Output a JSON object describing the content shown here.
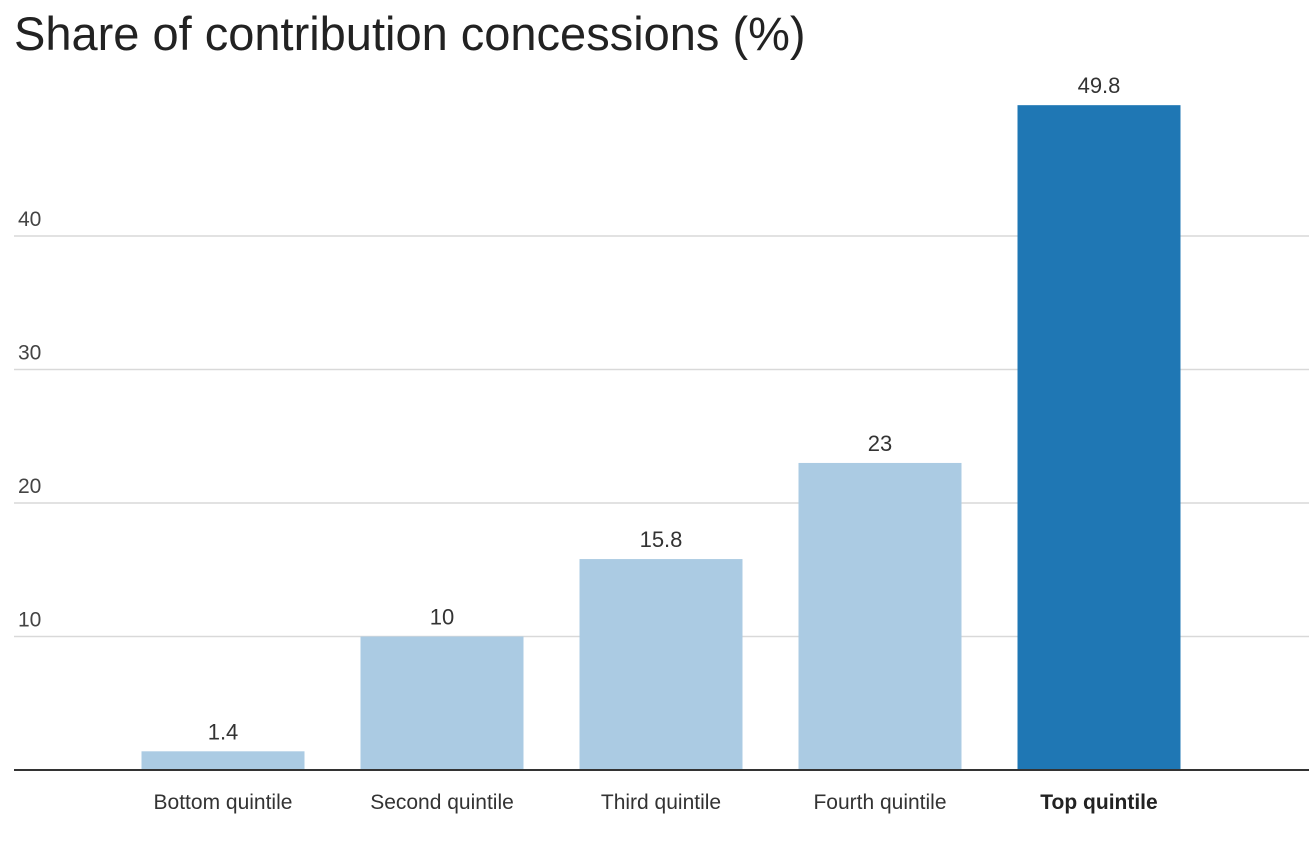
{
  "chart_data": {
    "type": "bar",
    "title": "Share of contribution concessions (%)",
    "xlabel": "",
    "ylabel": "",
    "categories": [
      "Bottom quintile",
      "Second quintile",
      "Third quintile",
      "Fourth quintile",
      "Top quintile"
    ],
    "values": [
      1.4,
      10,
      15.8,
      23,
      49.8
    ],
    "data_labels": [
      "1.4",
      "10",
      "15.8",
      "23",
      "49.8"
    ],
    "highlighted_category": "Top quintile",
    "yticks": [
      10,
      20,
      30,
      40
    ],
    "ylim": [
      0,
      50
    ],
    "grid": true,
    "legend": "none",
    "colors": {
      "bar": "#abcbe3",
      "highlight_bar": "#1f77b4",
      "grid": "#d9d9d9",
      "axis": "#333333"
    }
  }
}
